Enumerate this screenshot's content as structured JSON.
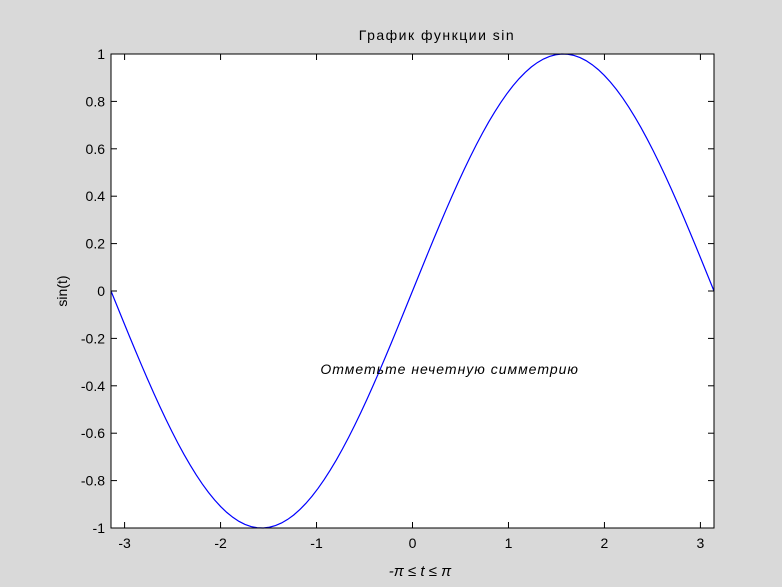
{
  "chart_data": {
    "type": "line",
    "title": "График функции sin",
    "xlabel": "-π ≤ t ≤  π",
    "ylabel": "sin(t)",
    "annotation": {
      "text": "Отметьте нечетную симметрию",
      "x": -0.96,
      "y": -0.33
    },
    "xlim": [
      -3.14159,
      3.14159
    ],
    "ylim": [
      -1,
      1
    ],
    "xticks": [
      -3,
      -2,
      -1,
      0,
      1,
      2,
      3
    ],
    "xtick_labels": [
      "-3",
      "-2",
      "-1",
      "0",
      "1",
      "2",
      "3"
    ],
    "yticks": [
      -1,
      -0.8,
      -0.6,
      -0.4,
      -0.2,
      0,
      0.2,
      0.4,
      0.6,
      0.8,
      1
    ],
    "ytick_labels": [
      "-1",
      "-0.8",
      "-0.6",
      "-0.4",
      "-0.2",
      "0",
      "0.2",
      "0.4",
      "0.6",
      "0.8",
      "1"
    ],
    "grid": false,
    "series": [
      {
        "color": "#0000ff",
        "function": "sin",
        "n_points": 100
      }
    ]
  }
}
